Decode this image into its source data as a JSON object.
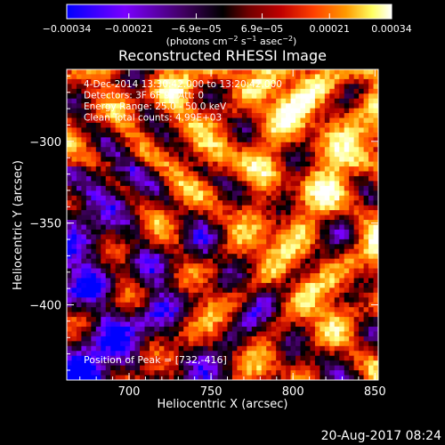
{
  "chart_data": {
    "type": "heatmap",
    "title": "Reconstructed RHESSI Image",
    "xlabel": "Heliocentric X (arcsec)",
    "ylabel": "Heliocentric Y (arcsec)",
    "xlim": [
      662,
      852
    ],
    "ylim": [
      -446,
      -256
    ],
    "x_ticks": [
      "700",
      "750",
      "800",
      "850"
    ],
    "x_tick_values": [
      700,
      750,
      800,
      850
    ],
    "y_ticks": [
      "−300",
      "−350",
      "−400"
    ],
    "y_tick_values": [
      -300,
      -350,
      -400
    ],
    "colorbar": {
      "ticks": [
        "−0.00034",
        "−0.00021",
        "−6.9e−05",
        "6.9e−05",
        "0.00021",
        "0.00034"
      ],
      "tick_values": [
        -0.00034,
        -0.00021,
        -6.9e-05,
        6.9e-05,
        0.00021,
        0.00034
      ],
      "range": [
        -0.00034,
        0.00034
      ],
      "colormap": [
        "#0000ff",
        "#7a00ff",
        "#400060",
        "#000000",
        "#b00000",
        "#ff4000",
        "#ff9a00",
        "#ffff80",
        "#ffffff"
      ]
    },
    "annotations": [
      "4-Dec-2014 13:30:42.000 to 13:20:42.000",
      "Detectors: 3F 6F 9F  Att: 0",
      "Energy Range: 25.0 - 50.0 keV",
      "Clean    Total counts: 4.99E+03"
    ],
    "peak_label": "Position of Peak = [732,-416]",
    "peak_position": [
      732,
      -416
    ],
    "grid": false
  },
  "footer": {
    "date": "20-Aug-2017 08:24"
  }
}
